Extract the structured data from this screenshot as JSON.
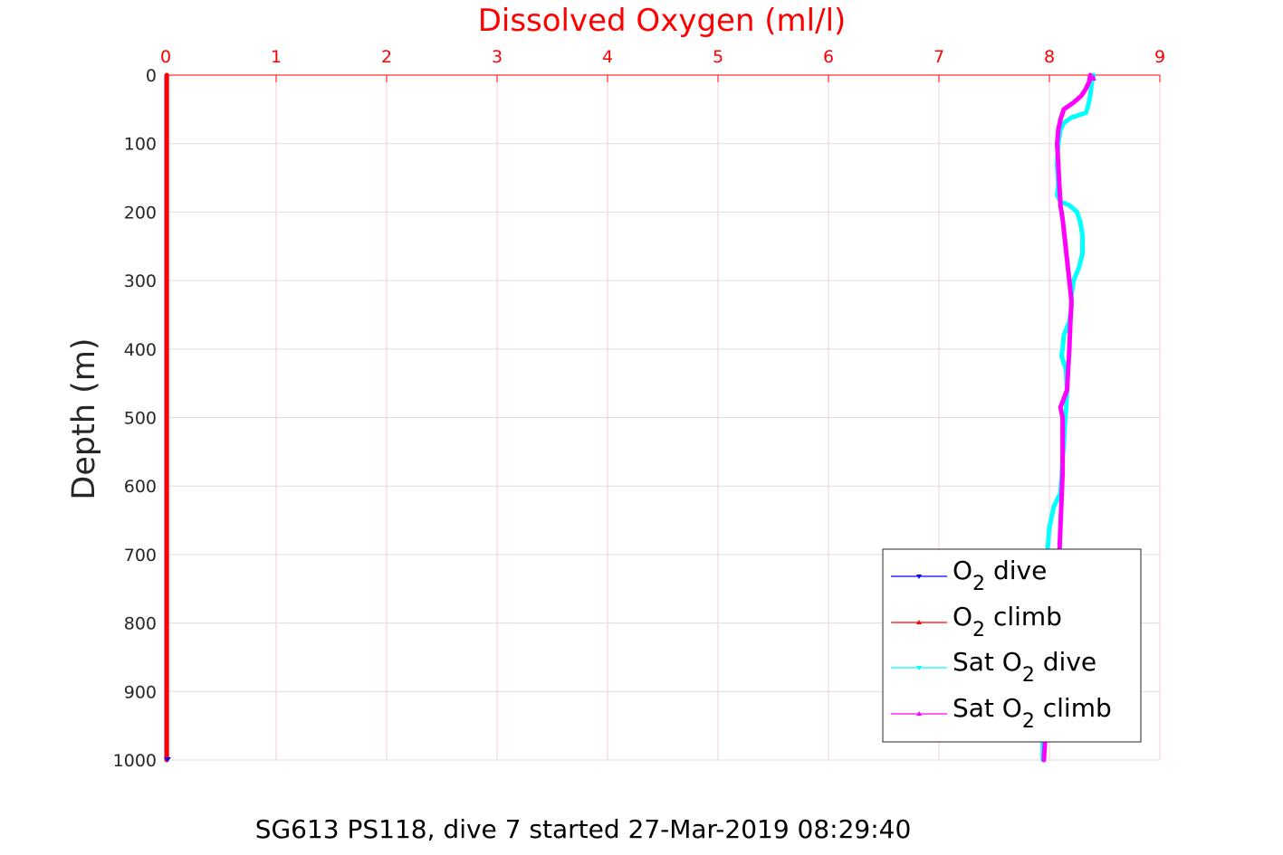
{
  "chart_data": {
    "type": "line",
    "xlabel": "Dissolved Oxygen (ml/l)",
    "ylabel": "Depth (m)",
    "caption": "SG613 PS118, dive 7 started 27-Mar-2019 08:29:40",
    "xlim": [
      0,
      9
    ],
    "ylim": [
      0,
      1000
    ],
    "y_reversed": true,
    "x_axis_position": "top",
    "x_ticks": [
      "0",
      "1",
      "2",
      "3",
      "4",
      "5",
      "6",
      "7",
      "8",
      "9"
    ],
    "y_ticks": [
      "0",
      "100",
      "200",
      "300",
      "400",
      "500",
      "600",
      "700",
      "800",
      "900",
      "1000"
    ],
    "grid": true,
    "legend_position": "bottom-right",
    "series": [
      {
        "name": "O2 dive",
        "legend_main": "O",
        "legend_sub": "2",
        "legend_tail": " dive",
        "color": "#0000ff",
        "points": [
          [
            0,
            0
          ],
          [
            0,
            1000
          ]
        ]
      },
      {
        "name": "O2 climb",
        "legend_main": "O",
        "legend_sub": "2",
        "legend_tail": " climb",
        "color": "#ff0000",
        "points": [
          [
            0.01,
            0
          ],
          [
            0.01,
            1000
          ]
        ]
      },
      {
        "name": "Sat O2 dive",
        "legend_main": "Sat O",
        "legend_sub": "2",
        "legend_tail": " dive",
        "color": "#00ffff",
        "points": [
          [
            8.4,
            0
          ],
          [
            8.38,
            15
          ],
          [
            8.37,
            30
          ],
          [
            8.35,
            45
          ],
          [
            8.33,
            55
          ],
          [
            8.2,
            62
          ],
          [
            8.13,
            70
          ],
          [
            8.1,
            80
          ],
          [
            8.08,
            100
          ],
          [
            8.07,
            130
          ],
          [
            8.08,
            160
          ],
          [
            8.07,
            175
          ],
          [
            8.1,
            185
          ],
          [
            8.18,
            190
          ],
          [
            8.25,
            200
          ],
          [
            8.28,
            215
          ],
          [
            8.3,
            235
          ],
          [
            8.3,
            260
          ],
          [
            8.27,
            280
          ],
          [
            8.22,
            300
          ],
          [
            8.2,
            320
          ],
          [
            8.2,
            340
          ],
          [
            8.18,
            360
          ],
          [
            8.13,
            380
          ],
          [
            8.12,
            400
          ],
          [
            8.11,
            410
          ],
          [
            8.15,
            430
          ],
          [
            8.16,
            460
          ],
          [
            8.15,
            490
          ],
          [
            8.14,
            510
          ],
          [
            8.13,
            540
          ],
          [
            8.12,
            560
          ],
          [
            8.11,
            590
          ],
          [
            8.1,
            610
          ],
          [
            8.04,
            630
          ],
          [
            8.0,
            660
          ],
          [
            7.99,
            680
          ],
          [
            7.98,
            700
          ],
          [
            7.97,
            750
          ],
          [
            7.96,
            800
          ],
          [
            7.96,
            850
          ],
          [
            7.95,
            900
          ],
          [
            7.94,
            950
          ],
          [
            7.94,
            1000
          ]
        ]
      },
      {
        "name": "Sat O2 climb",
        "legend_main": "Sat O",
        "legend_sub": "2",
        "legend_tail": " climb",
        "color": "#ff00ff",
        "points": [
          [
            8.37,
            0
          ],
          [
            8.36,
            10
          ],
          [
            8.33,
            20
          ],
          [
            8.29,
            30
          ],
          [
            8.22,
            40
          ],
          [
            8.13,
            50
          ],
          [
            8.1,
            65
          ],
          [
            8.08,
            80
          ],
          [
            8.07,
            100
          ],
          [
            8.08,
            130
          ],
          [
            8.09,
            160
          ],
          [
            8.1,
            190
          ],
          [
            8.12,
            210
          ],
          [
            8.14,
            240
          ],
          [
            8.16,
            270
          ],
          [
            8.18,
            300
          ],
          [
            8.2,
            330
          ],
          [
            8.19,
            360
          ],
          [
            8.18,
            400
          ],
          [
            8.17,
            430
          ],
          [
            8.16,
            460
          ],
          [
            8.1,
            485
          ],
          [
            8.12,
            500
          ],
          [
            8.12,
            540
          ],
          [
            8.12,
            580
          ],
          [
            8.11,
            620
          ],
          [
            8.1,
            660
          ],
          [
            8.09,
            700
          ],
          [
            8.08,
            740
          ],
          [
            8.07,
            780
          ],
          [
            8.05,
            820
          ],
          [
            8.03,
            860
          ],
          [
            8.0,
            900
          ],
          [
            7.97,
            950
          ],
          [
            7.95,
            1000
          ]
        ]
      }
    ]
  }
}
